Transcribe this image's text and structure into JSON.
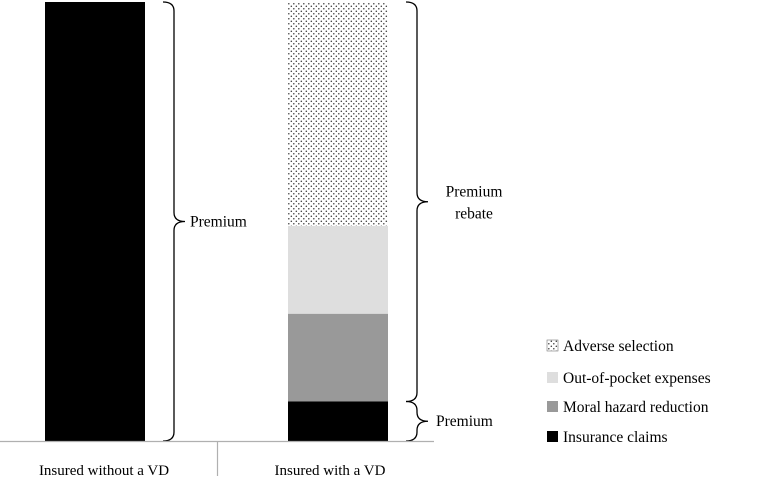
{
  "chart_data": {
    "type": "bar",
    "stacked": true,
    "categories": [
      "Insured without a VD",
      "Insured with a VD"
    ],
    "series": [
      {
        "name": "Insurance claims",
        "color": "#000000",
        "pattern": "solid",
        "values": [
          100,
          9
        ]
      },
      {
        "name": "Moral hazard reduction",
        "color": "#999999",
        "pattern": "solid",
        "values": [
          0,
          20
        ]
      },
      {
        "name": "Out-of-pocket expenses",
        "color": "#dedede",
        "pattern": "solid",
        "values": [
          0,
          20
        ]
      },
      {
        "name": "Adverse selection",
        "color": "#ffffff",
        "pattern": "dots",
        "values": [
          0,
          51
        ]
      }
    ],
    "ylim": [
      0,
      100
    ],
    "grid": false,
    "legend": {
      "position": "bottom-right",
      "order": [
        "Adverse selection",
        "Out-of-pocket expenses",
        "Moral hazard reduction",
        "Insurance claims"
      ]
    },
    "annotations": [
      {
        "category": "Insured without a VD",
        "from": 0,
        "to": 100,
        "text": "Premium"
      },
      {
        "category": "Insured with a VD",
        "from": 9,
        "to": 100,
        "text": "Premium rebate"
      },
      {
        "category": "Insured with a VD",
        "from": 0,
        "to": 9,
        "text": "Premium"
      }
    ]
  }
}
